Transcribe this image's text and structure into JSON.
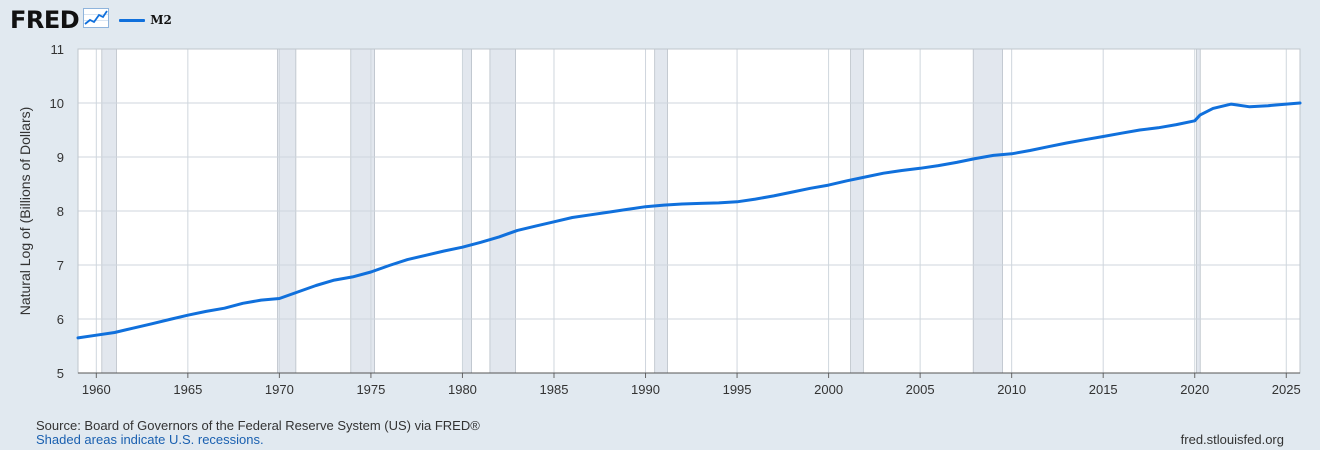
{
  "header": {
    "logo": "FRED",
    "logo_icon": "trend-chart-icon"
  },
  "colors": {
    "line": "#1070dc",
    "recession": "#e2e7ee",
    "recession_edge": "#b9c0c8",
    "plot_bg": "#ffffff",
    "page_bg": "#e1e9f0",
    "grid": "#cfd6dd"
  },
  "chart_data": {
    "type": "line",
    "title": "",
    "xlabel": "",
    "ylabel": "Natural Log of (Billions of Dollars)",
    "xlim": [
      1959.0,
      2025.75
    ],
    "ylim": [
      5,
      11
    ],
    "x_ticks": [
      1960,
      1965,
      1970,
      1975,
      1980,
      1985,
      1990,
      1995,
      2000,
      2005,
      2010,
      2015,
      2020,
      2025
    ],
    "y_ticks": [
      5,
      6,
      7,
      8,
      9,
      10,
      11
    ],
    "grid": true,
    "legend": "top-left",
    "recessions": [
      [
        1960.3,
        1961.1
      ],
      [
        1969.9,
        1970.9
      ],
      [
        1973.9,
        1975.2
      ],
      [
        1980.0,
        1980.5
      ],
      [
        1981.5,
        1982.9
      ],
      [
        1990.5,
        1991.2
      ],
      [
        2001.2,
        2001.9
      ],
      [
        2007.9,
        2009.5
      ],
      [
        2020.1,
        2020.3
      ]
    ],
    "series": [
      {
        "name": "M2",
        "x": [
          1959.0,
          1960.0,
          1961.0,
          1962.0,
          1963.0,
          1964.0,
          1965.0,
          1966.0,
          1967.0,
          1968.0,
          1969.0,
          1970.0,
          1971.0,
          1972.0,
          1973.0,
          1974.0,
          1975.0,
          1976.0,
          1977.0,
          1978.0,
          1979.0,
          1980.0,
          1981.0,
          1982.0,
          1983.0,
          1984.0,
          1985.0,
          1986.0,
          1987.0,
          1988.0,
          1989.0,
          1990.0,
          1991.0,
          1992.0,
          1993.0,
          1994.0,
          1995.0,
          1996.0,
          1997.0,
          1998.0,
          1999.0,
          2000.0,
          2001.0,
          2002.0,
          2003.0,
          2004.0,
          2005.0,
          2006.0,
          2007.0,
          2008.0,
          2009.0,
          2010.0,
          2011.0,
          2012.0,
          2013.0,
          2014.0,
          2015.0,
          2016.0,
          2017.0,
          2018.0,
          2019.0,
          2020.0,
          2020.3,
          2021.0,
          2022.0,
          2023.0,
          2024.0,
          2025.0,
          2025.75
        ],
        "values": [
          5.65,
          5.7,
          5.75,
          5.83,
          5.91,
          5.99,
          6.07,
          6.14,
          6.2,
          6.29,
          6.35,
          6.38,
          6.5,
          6.62,
          6.72,
          6.78,
          6.87,
          6.99,
          7.1,
          7.18,
          7.26,
          7.33,
          7.42,
          7.52,
          7.64,
          7.72,
          7.8,
          7.88,
          7.93,
          7.98,
          8.03,
          8.08,
          8.11,
          8.13,
          8.14,
          8.15,
          8.17,
          8.22,
          8.28,
          8.35,
          8.42,
          8.48,
          8.56,
          8.63,
          8.7,
          8.75,
          8.79,
          8.84,
          8.9,
          8.97,
          9.03,
          9.06,
          9.12,
          9.19,
          9.26,
          9.32,
          9.38,
          9.44,
          9.5,
          9.54,
          9.6,
          9.67,
          9.78,
          9.9,
          9.98,
          9.93,
          9.95,
          9.98,
          10.0
        ]
      }
    ]
  },
  "footer": {
    "source": "Source: Board of Governors of the Federal Reserve System (US) via FRED®",
    "note": "Shaded areas indicate U.S. recessions.",
    "credit": "fred.stlouisfed.org"
  }
}
